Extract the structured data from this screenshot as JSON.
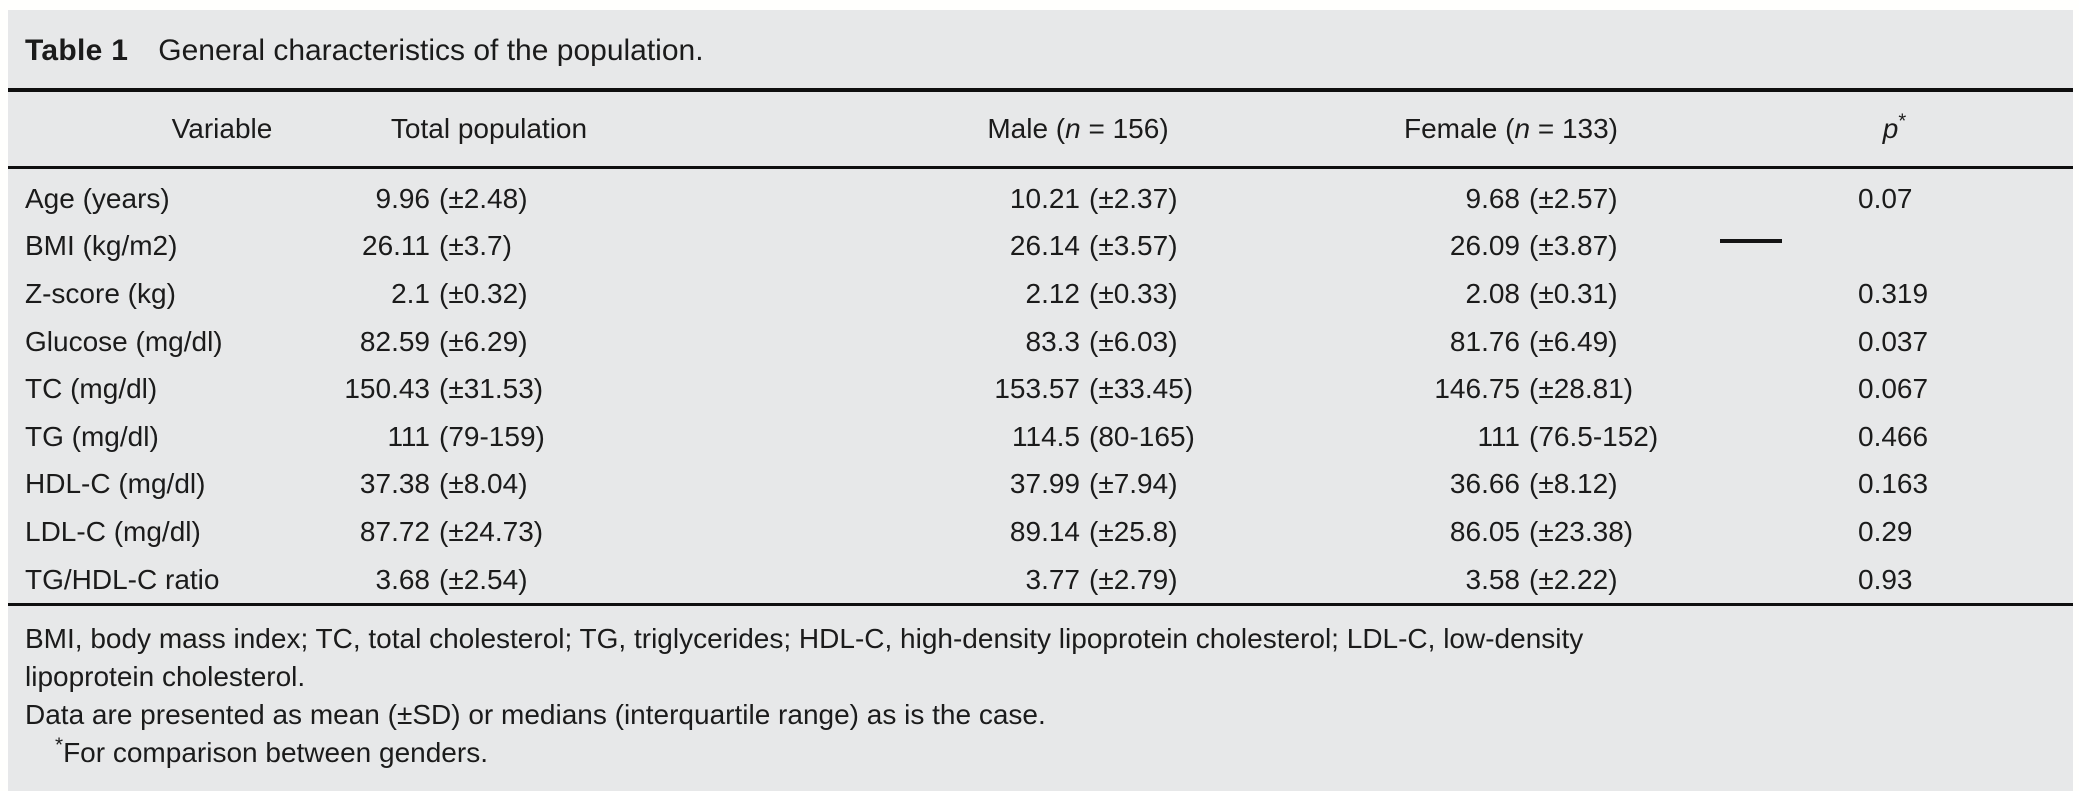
{
  "panel": {
    "background_color": "#e7e8e9",
    "rule_color": "#0f0f0f",
    "text_color": "#1b1b1b"
  },
  "title": {
    "label": "Table 1",
    "text": "General characteristics of the population."
  },
  "table": {
    "headers": {
      "variable": "Variable",
      "total": "Total population",
      "male": {
        "pre": "Male (",
        "it": "n",
        "post": " = 156)"
      },
      "female": {
        "pre": "Female (",
        "it": "n",
        "post": " = 133)"
      },
      "p": {
        "it": "p",
        "sup": "*"
      }
    },
    "rows": [
      {
        "label": "Age (years)",
        "total": {
          "v": "9.96",
          "p": "(±2.48)"
        },
        "male": {
          "v": "10.21",
          "p": "(±2.37)"
        },
        "female": {
          "v": "9.68",
          "p": "(±2.57)"
        },
        "pval": "0.07"
      },
      {
        "label": "BMI (kg/m2)",
        "total": {
          "v": "26.11",
          "p": "(±3.7)"
        },
        "male": {
          "v": "26.14",
          "p": "(±3.57)"
        },
        "female": {
          "v": "26.09",
          "p": "(±3.87)"
        },
        "pval": ""
      },
      {
        "label": "Z-score (kg)",
        "total": {
          "v": "2.1",
          "p": "(±0.32)"
        },
        "male": {
          "v": "2.12",
          "p": "(±0.33)"
        },
        "female": {
          "v": "2.08",
          "p": "(±0.31)"
        },
        "pval": "0.319"
      },
      {
        "label": "Glucose (mg/dl)",
        "total": {
          "v": "82.59",
          "p": "(±6.29)"
        },
        "male": {
          "v": "83.3",
          "p": "(±6.03)"
        },
        "female": {
          "v": "81.76",
          "p": "(±6.49)"
        },
        "pval": "0.037"
      },
      {
        "label": "TC (mg/dl)",
        "total": {
          "v": "150.43",
          "p": "(±31.53)"
        },
        "male": {
          "v": "153.57",
          "p": "(±33.45)"
        },
        "female": {
          "v": "146.75",
          "p": "(±28.81)"
        },
        "pval": "0.067"
      },
      {
        "label": "TG (mg/dl)",
        "total": {
          "v": "111",
          "p": "(79-159)"
        },
        "male": {
          "v": "114.5",
          "p": "(80-165)"
        },
        "female": {
          "v": "111",
          "p": "(76.5-152)"
        },
        "pval": "0.466"
      },
      {
        "label": "HDL-C (mg/dl)",
        "total": {
          "v": "37.38",
          "p": "(±8.04)"
        },
        "male": {
          "v": "37.99",
          "p": "(±7.94)"
        },
        "female": {
          "v": "36.66",
          "p": "(±8.12)"
        },
        "pval": "0.163"
      },
      {
        "label": "LDL-C (mg/dl)",
        "total": {
          "v": "87.72",
          "p": "(±24.73)"
        },
        "male": {
          "v": "89.14",
          "p": "(±25.8)"
        },
        "female": {
          "v": "86.05",
          "p": "(±23.38)"
        },
        "pval": "0.29"
      },
      {
        "label": "TG/HDL-C ratio",
        "total": {
          "v": "3.68",
          "p": "(±2.54)"
        },
        "male": {
          "v": "3.77",
          "p": "(±2.79)"
        },
        "female": {
          "v": "3.58",
          "p": "(±2.22)"
        },
        "pval": "0.93"
      }
    ]
  },
  "footnotes": {
    "lines": [
      "BMI, body mass index; TC, total cholesterol; TG, triglycerides; HDL-C, high-density lipoprotein cholesterol; LDL-C, low-density",
      "lipoprotein cholesterol.",
      "Data are presented as mean (±SD) or medians (interquartile range) as is the case."
    ],
    "star": {
      "sup": "*",
      "text": "For comparison between genders."
    }
  }
}
